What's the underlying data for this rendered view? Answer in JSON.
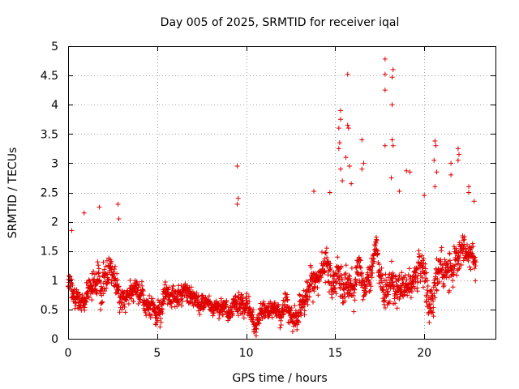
{
  "chart_data": {
    "type": "scatter",
    "title": "Day 005 of 2025, SRMTID for receiver iqal",
    "xlabel": "GPS time / hours",
    "ylabel": "SRMTID / TECUs",
    "xlim": [
      0,
      24
    ],
    "ylim": [
      0,
      5
    ],
    "xticks": [
      0,
      5,
      10,
      15,
      20
    ],
    "xtick_labels": [
      "0",
      "5",
      "10",
      "15",
      "20"
    ],
    "yticks": [
      0,
      0.5,
      1,
      1.5,
      2,
      2.5,
      3,
      3.5,
      4,
      4.5,
      5
    ],
    "ytick_labels": [
      "0",
      "0.5",
      "1",
      "1.5",
      "2",
      "2.5",
      "3",
      "3.5",
      "4",
      "4.5",
      "5"
    ],
    "grid": true,
    "marker": "+",
    "series": [
      {
        "name": "SRMTID",
        "color": "#e00000",
        "data_extent": [
          0.0,
          22.9
        ],
        "notes": "dense scatter, approximately every 30 s; profile below gives typical level and spread per hour",
        "profile": [
          {
            "t": 0,
            "mean": 1.0,
            "spread": 0.4
          },
          {
            "t": 1,
            "mean": 0.9,
            "spread": 0.5
          },
          {
            "t": 2,
            "mean": 1.05,
            "spread": 0.55
          },
          {
            "t": 3,
            "mean": 0.8,
            "spread": 0.35
          },
          {
            "t": 4,
            "mean": 0.75,
            "spread": 0.35
          },
          {
            "t": 5,
            "mean": 0.7,
            "spread": 0.35
          },
          {
            "t": 6,
            "mean": 0.65,
            "spread": 0.35
          },
          {
            "t": 7,
            "mean": 0.7,
            "spread": 0.35
          },
          {
            "t": 8,
            "mean": 0.55,
            "spread": 0.25
          },
          {
            "t": 9,
            "mean": 0.6,
            "spread": 0.3
          },
          {
            "t": 10,
            "mean": 0.6,
            "spread": 0.35
          },
          {
            "t": 11,
            "mean": 0.4,
            "spread": 0.3
          },
          {
            "t": 12,
            "mean": 0.4,
            "spread": 0.3
          },
          {
            "t": 13,
            "mean": 0.55,
            "spread": 0.45
          },
          {
            "t": 14,
            "mean": 0.9,
            "spread": 0.5
          },
          {
            "t": 15,
            "mean": 1.1,
            "spread": 0.6
          },
          {
            "t": 16,
            "mean": 1.0,
            "spread": 0.6
          },
          {
            "t": 17,
            "mean": 0.9,
            "spread": 0.55
          },
          {
            "t": 18,
            "mean": 1.0,
            "spread": 0.7
          },
          {
            "t": 19,
            "mean": 0.8,
            "spread": 0.5
          },
          {
            "t": 20,
            "mean": 1.0,
            "spread": 0.6
          },
          {
            "t": 21,
            "mean": 1.05,
            "spread": 0.55
          },
          {
            "t": 22,
            "mean": 1.25,
            "spread": 0.55
          },
          {
            "t": 23,
            "mean": 1.15,
            "spread": 0.45
          }
        ],
        "outliers": [
          {
            "x": 0.2,
            "y": 1.85
          },
          {
            "x": 0.9,
            "y": 2.15
          },
          {
            "x": 1.75,
            "y": 2.25
          },
          {
            "x": 2.8,
            "y": 2.3
          },
          {
            "x": 2.85,
            "y": 2.05
          },
          {
            "x": 9.5,
            "y": 2.95
          },
          {
            "x": 9.55,
            "y": 2.4
          },
          {
            "x": 9.5,
            "y": 2.3
          },
          {
            "x": 13.8,
            "y": 2.52
          },
          {
            "x": 14.7,
            "y": 2.5
          },
          {
            "x": 15.3,
            "y": 3.9
          },
          {
            "x": 15.3,
            "y": 3.75
          },
          {
            "x": 15.2,
            "y": 3.6
          },
          {
            "x": 15.25,
            "y": 3.35
          },
          {
            "x": 15.2,
            "y": 3.25
          },
          {
            "x": 15.3,
            "y": 2.9
          },
          {
            "x": 15.4,
            "y": 2.7
          },
          {
            "x": 15.7,
            "y": 4.52
          },
          {
            "x": 15.7,
            "y": 3.65
          },
          {
            "x": 15.75,
            "y": 3.6
          },
          {
            "x": 15.6,
            "y": 3.1
          },
          {
            "x": 15.8,
            "y": 2.95
          },
          {
            "x": 15.9,
            "y": 2.65
          },
          {
            "x": 16.5,
            "y": 3.4
          },
          {
            "x": 16.6,
            "y": 3.0
          },
          {
            "x": 16.5,
            "y": 2.9
          },
          {
            "x": 17.8,
            "y": 4.78
          },
          {
            "x": 17.8,
            "y": 4.52
          },
          {
            "x": 17.8,
            "y": 4.25
          },
          {
            "x": 17.8,
            "y": 3.3
          },
          {
            "x": 18.25,
            "y": 4.6
          },
          {
            "x": 18.2,
            "y": 4.47
          },
          {
            "x": 18.2,
            "y": 4.0
          },
          {
            "x": 18.2,
            "y": 3.4
          },
          {
            "x": 18.25,
            "y": 3.3
          },
          {
            "x": 18.15,
            "y": 2.75
          },
          {
            "x": 18.6,
            "y": 2.52
          },
          {
            "x": 19.0,
            "y": 2.87
          },
          {
            "x": 19.2,
            "y": 2.85
          },
          {
            "x": 20.0,
            "y": 2.45
          },
          {
            "x": 20.6,
            "y": 3.38
          },
          {
            "x": 20.65,
            "y": 3.3
          },
          {
            "x": 20.55,
            "y": 3.05
          },
          {
            "x": 20.7,
            "y": 2.85
          },
          {
            "x": 20.6,
            "y": 2.6
          },
          {
            "x": 21.5,
            "y": 3.0
          },
          {
            "x": 21.5,
            "y": 2.8
          },
          {
            "x": 21.9,
            "y": 3.25
          },
          {
            "x": 21.95,
            "y": 3.15
          },
          {
            "x": 21.9,
            "y": 3.05
          },
          {
            "x": 22.5,
            "y": 2.6
          },
          {
            "x": 22.5,
            "y": 2.5
          },
          {
            "x": 22.8,
            "y": 2.35
          }
        ]
      }
    ]
  }
}
